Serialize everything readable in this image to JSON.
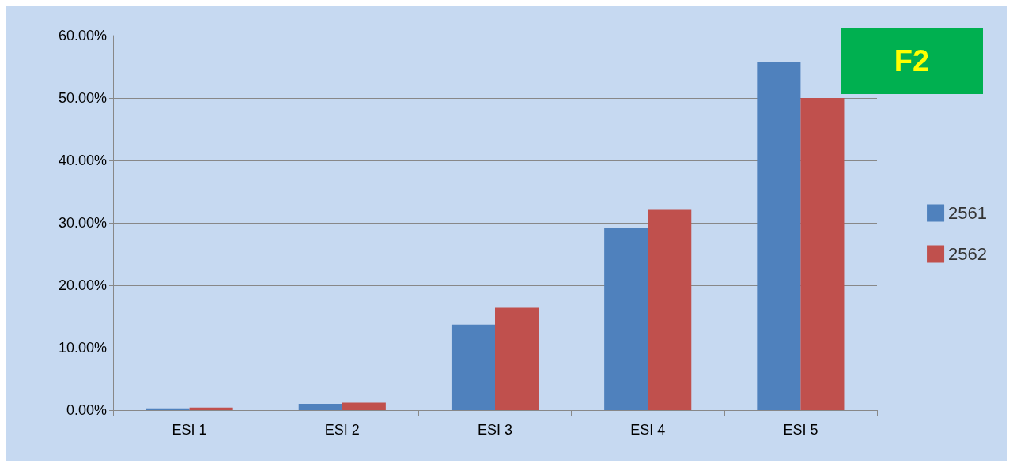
{
  "chart_data": {
    "type": "bar",
    "categories": [
      "ESI 1",
      "ESI 2",
      "ESI 3",
      "ESI 4",
      "ESI 5"
    ],
    "series": [
      {
        "name": "2561",
        "color": "#4f81bd",
        "values": [
          0.3,
          1.0,
          13.7,
          29.1,
          55.8
        ]
      },
      {
        "name": "2562",
        "color": "#c0504d",
        "values": [
          0.4,
          1.2,
          16.4,
          32.1,
          50.0
        ]
      }
    ],
    "ylim": [
      0,
      60
    ],
    "yticks": [
      {
        "value": 0,
        "label": "0.00%"
      },
      {
        "value": 10,
        "label": "10.00%"
      },
      {
        "value": 20,
        "label": "20.00%"
      },
      {
        "value": 30,
        "label": "30.00%"
      },
      {
        "value": 40,
        "label": "40.00%"
      },
      {
        "value": 50,
        "label": "50.00%"
      },
      {
        "value": 60,
        "label": "60.00%"
      }
    ],
    "grid": "y",
    "legend": "right",
    "annotations": [
      "F2"
    ]
  }
}
